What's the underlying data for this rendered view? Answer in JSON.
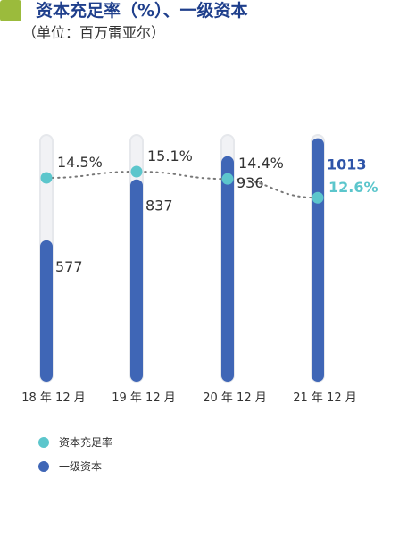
{
  "header": {
    "title": "资本充足率（%）、一级资本",
    "subtitle": "（单位：百万雷亚尔）"
  },
  "colors": {
    "title_square": "#9bbb3c",
    "title_text": "#1f3f8c",
    "bar": "#3f66b6",
    "dot": "#5cc6cc",
    "track": "#e6e8ec",
    "dotted_line": "#777777",
    "highlight_rate": "#5cc6cc",
    "highlight_capital": "#2e54a8",
    "label_text": "#333333"
  },
  "chart_data": {
    "type": "bar",
    "categories": [
      "18 年 12 月",
      "19 年 12 月",
      "20 年 12 月",
      "21 年 12 月"
    ],
    "series": [
      {
        "name": "一级资本",
        "type": "bar",
        "values": [
          577,
          837,
          936,
          1013
        ],
        "labels": [
          "577",
          "837",
          "936",
          "1013"
        ]
      },
      {
        "name": "资本充足率",
        "type": "line",
        "values": [
          14.5,
          15.1,
          14.4,
          12.6
        ],
        "labels": [
          "14.5%",
          "15.1%",
          "14.4%",
          "12.6%"
        ]
      }
    ],
    "highlight_last": true
  },
  "legend": [
    {
      "label": "资本充足率",
      "icon": "dot-icon-teal"
    },
    {
      "label": "一级资本",
      "icon": "dot-icon-blue"
    }
  ]
}
